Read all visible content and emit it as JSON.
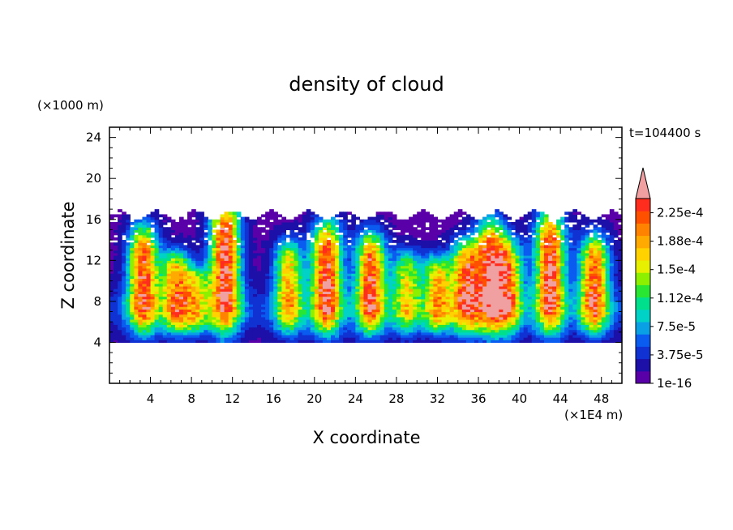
{
  "chart_data": {
    "type": "heatmap",
    "title": "density of cloud",
    "xlabel": "X coordinate",
    "ylabel": "Z coordinate",
    "x_unit": "(×1E4 m)",
    "y_unit": "(×1000 m)",
    "time_label": "t=104400 s",
    "xlim": [
      0,
      50
    ],
    "ylim": [
      0,
      25
    ],
    "x_ticks": [
      "4",
      "8",
      "12",
      "16",
      "20",
      "24",
      "28",
      "32",
      "36",
      "40",
      "44",
      "48"
    ],
    "y_ticks": [
      "4",
      "8",
      "12",
      "16",
      "20",
      "24"
    ],
    "colorbar": {
      "levels": [
        "1e-16",
        "3.75e-5",
        "7.5e-5",
        "1.12e-4",
        "1.5e-4",
        "1.88e-4",
        "2.25e-4"
      ],
      "min": 0,
      "max": 0.00024,
      "extend": "max",
      "colors": [
        "#5a00a8",
        "#1c10a8",
        "#1032d2",
        "#0a5cf0",
        "#0aa0e6",
        "#00d2c8",
        "#00e08c",
        "#28e632",
        "#8cf000",
        "#e6f000",
        "#ffd200",
        "#ffaa00",
        "#ff8200",
        "#ff5000",
        "#ff2d1e",
        "#f0a0a0"
      ]
    },
    "cloud_base": 4.0,
    "cloud_top_range": [
      16.0,
      16.9
    ],
    "columns": [
      {
        "x": 3.3,
        "peak": 0.00021,
        "top": 14.5
      },
      {
        "x": 6.5,
        "peak": 0.000175,
        "top": 12.0
      },
      {
        "x": 8.5,
        "peak": 0.00012,
        "top": 10.5
      },
      {
        "x": 11.3,
        "peak": 0.00023,
        "top": 16.9
      },
      {
        "x": 17.5,
        "peak": 0.00016,
        "top": 13.0
      },
      {
        "x": 21.2,
        "peak": 0.000225,
        "top": 14.8
      },
      {
        "x": 25.5,
        "peak": 0.00021,
        "top": 13.8
      },
      {
        "x": 29.0,
        "peak": 0.00014,
        "top": 12.0
      },
      {
        "x": 32.0,
        "peak": 0.00016,
        "top": 11.5
      },
      {
        "x": 34.8,
        "peak": 0.0002,
        "top": 13.0
      },
      {
        "x": 37.2,
        "peak": 0.00022,
        "top": 15.0
      },
      {
        "x": 39.0,
        "peak": 0.00016,
        "top": 13.0
      },
      {
        "x": 43.0,
        "peak": 0.000225,
        "top": 15.8
      },
      {
        "x": 47.3,
        "peak": 0.0002,
        "top": 13.5
      }
    ]
  }
}
